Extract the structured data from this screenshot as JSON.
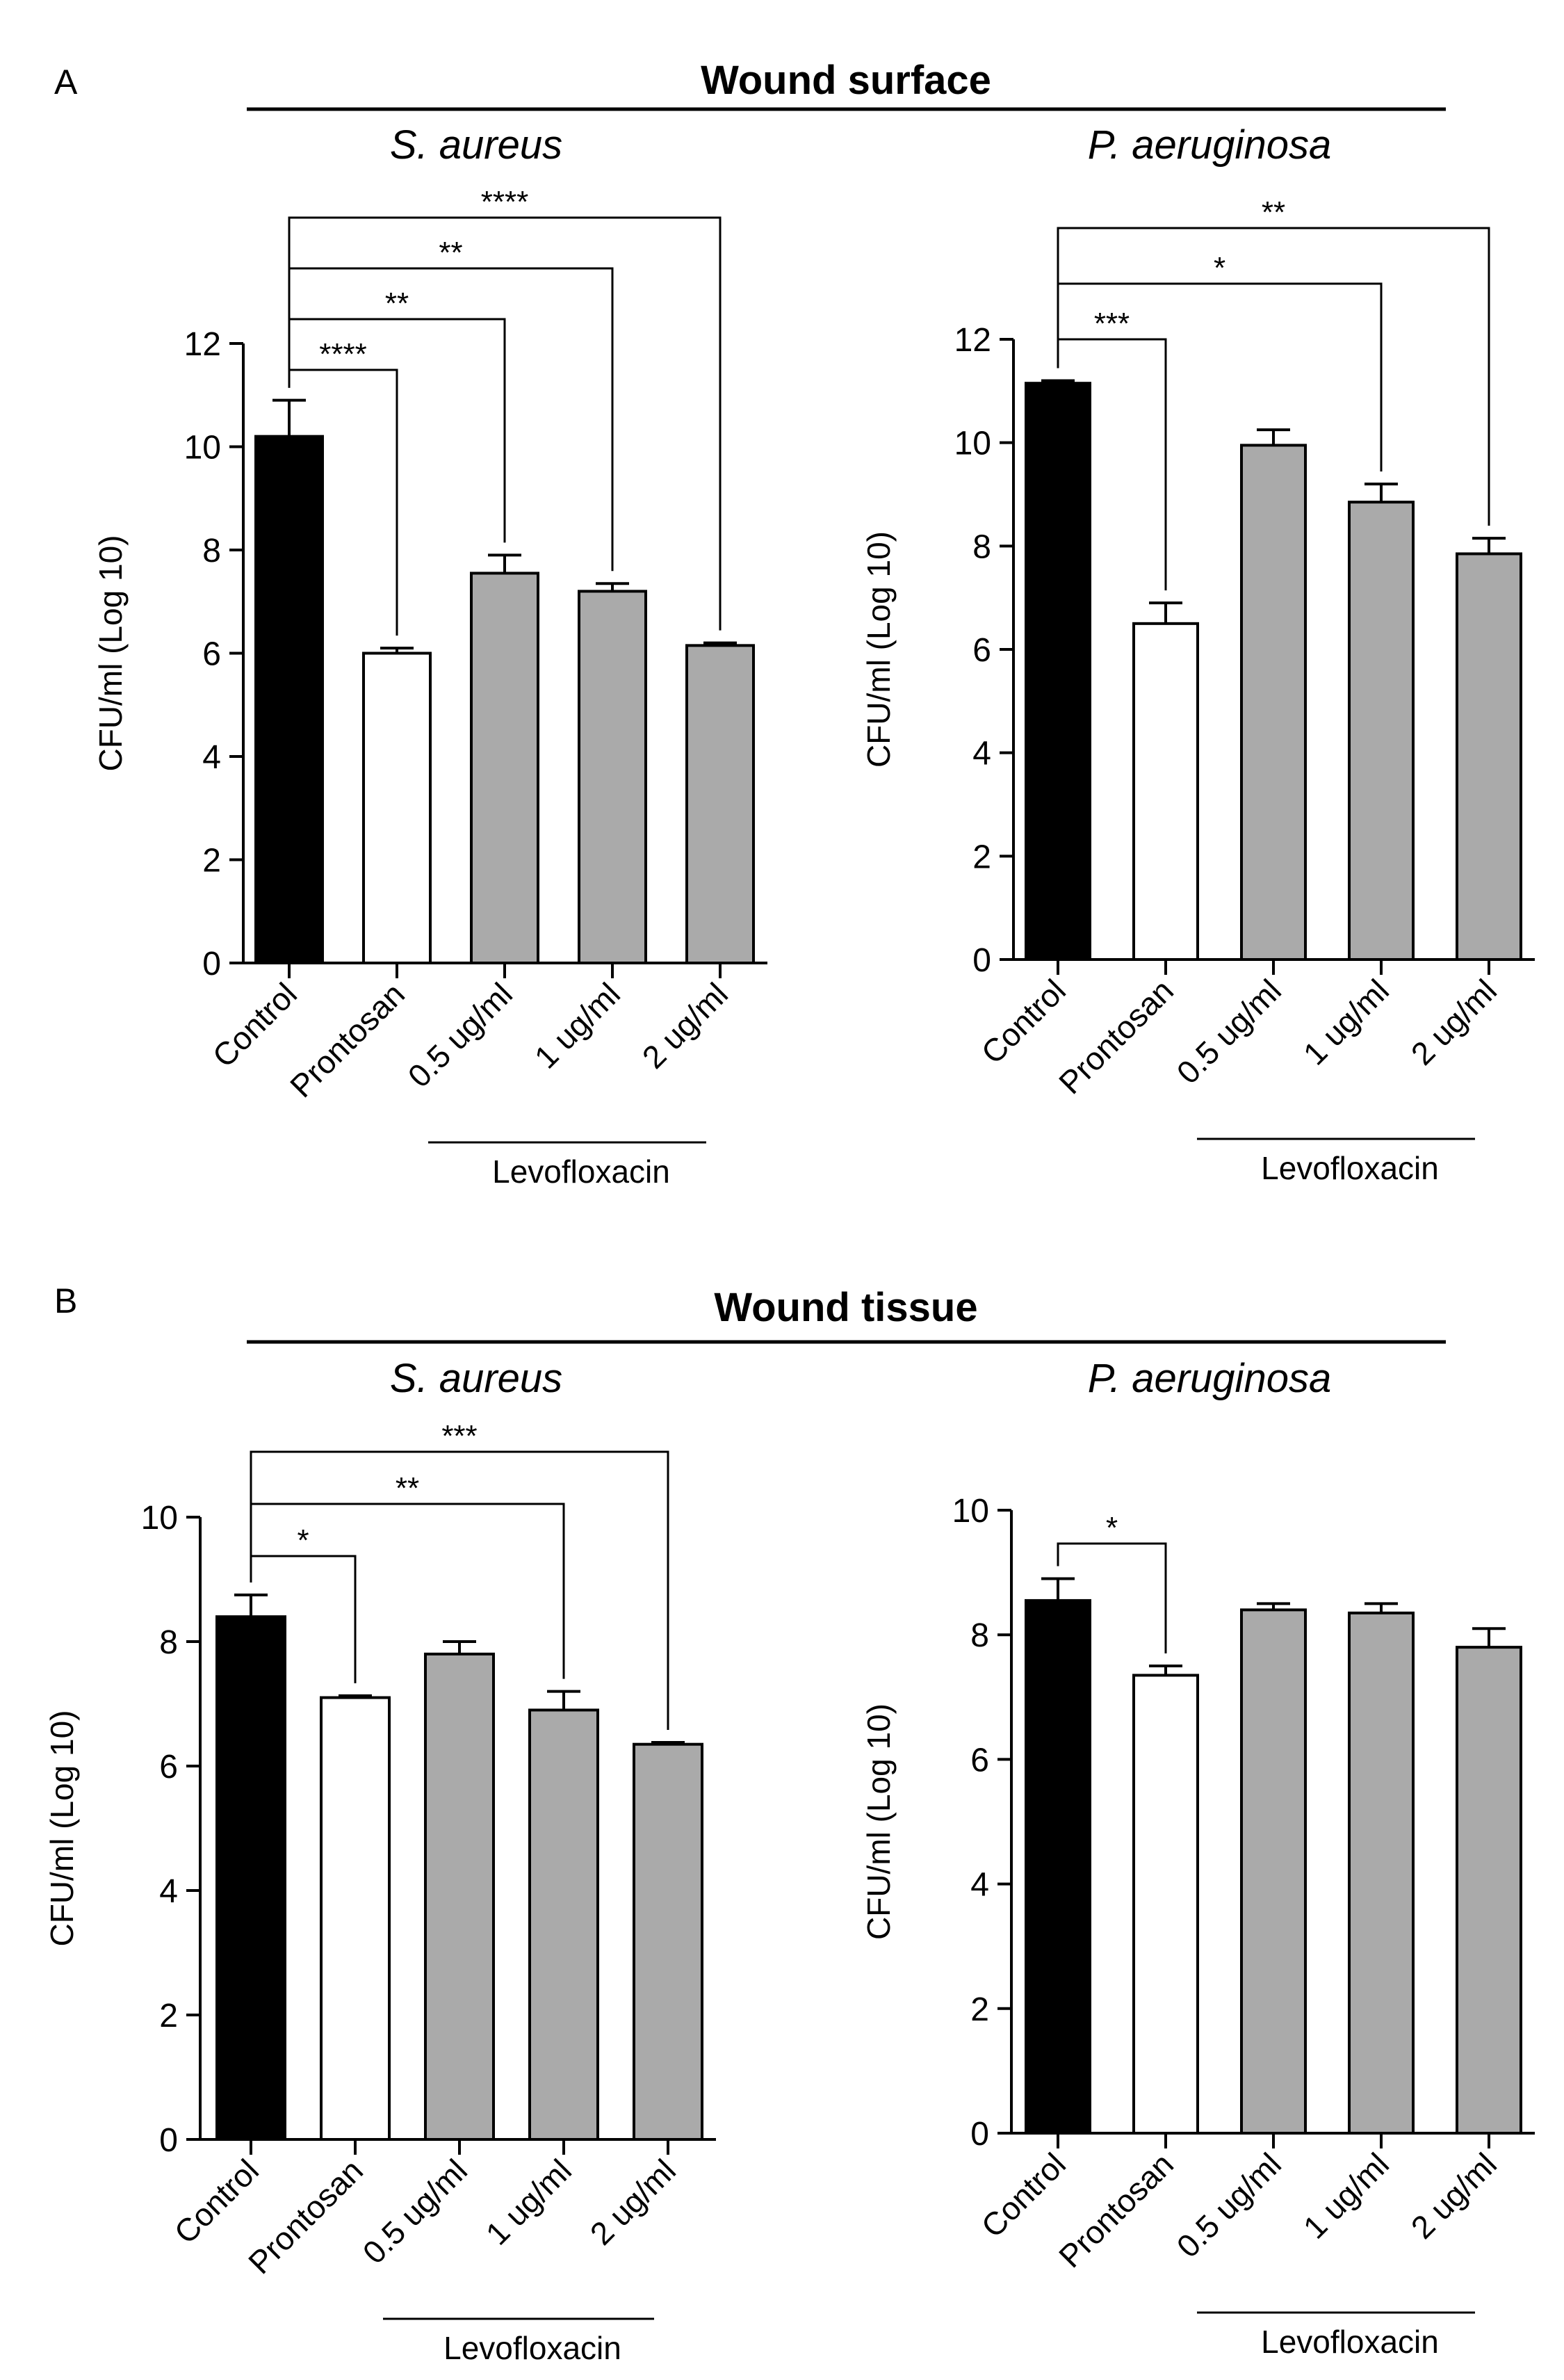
{
  "panels": [
    {
      "letter": "A",
      "title": "Wound surface"
    },
    {
      "letter": "B",
      "title": "Wound tissue"
    }
  ],
  "colors": {
    "control": "#000000",
    "prontosan": "#ffffff",
    "levofloxacin": "#aaaaaa",
    "stroke": "#000000"
  },
  "chart_data": [
    {
      "type": "bar",
      "panel": "A",
      "title": "S. aureus",
      "ylabel": "CFU/ml (Log 10)",
      "ylim": [
        0,
        12
      ],
      "yticks": [
        0,
        2,
        4,
        6,
        8,
        10,
        12
      ],
      "categories": [
        "Control",
        "Prontosan",
        "0.5 ug/ml",
        "1 ug/ml",
        "2 ug/ml"
      ],
      "values": [
        10.2,
        6.0,
        7.55,
        7.2,
        6.15
      ],
      "errors": [
        0.7,
        0.1,
        0.35,
        0.15,
        0.05
      ],
      "fills": [
        "control",
        "prontosan",
        "levofloxacin",
        "levofloxacin",
        "levofloxacin"
      ],
      "group_label": {
        "text": "Levofloxacin",
        "from": 2,
        "to": 4
      },
      "significance": [
        {
          "to": 1,
          "label": "****"
        },
        {
          "to": 2,
          "label": "**"
        },
        {
          "to": 3,
          "label": "**"
        },
        {
          "to": 4,
          "label": "****"
        }
      ]
    },
    {
      "type": "bar",
      "panel": "A",
      "title": "P. aeruginosa",
      "ylabel": "CFU/ml (Log 10)",
      "ylim": [
        0,
        12
      ],
      "yticks": [
        0,
        2,
        4,
        6,
        8,
        10,
        12
      ],
      "categories": [
        "Control",
        "Prontosan",
        "0.5 ug/ml",
        "1 ug/ml",
        "2 ug/ml"
      ],
      "values": [
        11.15,
        6.5,
        9.95,
        8.85,
        7.85
      ],
      "errors": [
        0.05,
        0.4,
        0.3,
        0.35,
        0.3
      ],
      "fills": [
        "control",
        "prontosan",
        "levofloxacin",
        "levofloxacin",
        "levofloxacin"
      ],
      "group_label": {
        "text": "Levofloxacin",
        "from": 2,
        "to": 4
      },
      "significance": [
        {
          "to": 1,
          "label": "***"
        },
        {
          "to": 3,
          "label": "*"
        },
        {
          "to": 4,
          "label": "**"
        }
      ]
    },
    {
      "type": "bar",
      "panel": "B",
      "title": "S. aureus",
      "ylabel": "CFU/ml (Log 10)",
      "ylim": [
        0,
        10
      ],
      "yticks": [
        0,
        2,
        4,
        6,
        8,
        10
      ],
      "categories": [
        "Control",
        "Prontosan",
        "0.5 ug/ml",
        "1 ug/ml",
        "2 ug/ml"
      ],
      "values": [
        8.4,
        7.1,
        7.8,
        6.9,
        6.35
      ],
      "errors": [
        0.35,
        0.03,
        0.2,
        0.3,
        0.03
      ],
      "fills": [
        "control",
        "prontosan",
        "levofloxacin",
        "levofloxacin",
        "levofloxacin"
      ],
      "group_label": {
        "text": "Levofloxacin",
        "from": 2,
        "to": 4
      },
      "significance": [
        {
          "to": 1,
          "label": "*"
        },
        {
          "to": 3,
          "label": "**"
        },
        {
          "to": 4,
          "label": "***"
        }
      ]
    },
    {
      "type": "bar",
      "panel": "B",
      "title": "P. aeruginosa",
      "ylabel": "CFU/ml (Log 10)",
      "ylim": [
        0,
        10
      ],
      "yticks": [
        0,
        2,
        4,
        6,
        8,
        10
      ],
      "categories": [
        "Control",
        "Prontosan",
        "0.5 ug/ml",
        "1 ug/ml",
        "2 ug/ml"
      ],
      "values": [
        8.55,
        7.35,
        8.4,
        8.35,
        7.8
      ],
      "errors": [
        0.35,
        0.15,
        0.1,
        0.15,
        0.3
      ],
      "fills": [
        "control",
        "prontosan",
        "levofloxacin",
        "levofloxacin",
        "levofloxacin"
      ],
      "group_label": {
        "text": "Levofloxacin",
        "from": 2,
        "to": 4
      },
      "significance": [
        {
          "to": 1,
          "label": "*"
        }
      ]
    }
  ]
}
